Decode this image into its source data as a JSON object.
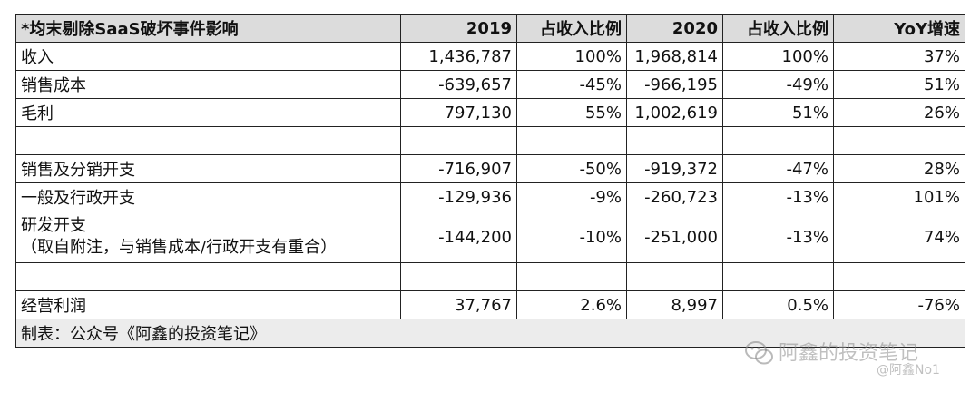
{
  "table": {
    "header": [
      "*均末剔除SaaS破坏事件影响",
      "2019",
      "占收入比例",
      "2020",
      "占收入比例",
      "YoY增速"
    ],
    "rows": [
      [
        "收入",
        "1,436,787",
        "100%",
        "1,968,814",
        "100%",
        "37%"
      ],
      [
        "销售成本",
        "-639,657",
        "-45%",
        "-966,195",
        "-49%",
        "51%"
      ],
      [
        "毛利",
        "797,130",
        "55%",
        "1,002,619",
        "51%",
        "26%"
      ],
      [
        "",
        "",
        "",
        "",
        "",
        ""
      ],
      [
        "销售及分销开支",
        "-716,907",
        "-50%",
        "-919,372",
        "-47%",
        "28%"
      ],
      [
        "一般及行政开支",
        "-129,936",
        "-9%",
        "-260,723",
        "-13%",
        "101%"
      ],
      [
        "研发开支",
        "-144,200",
        "-10%",
        "-251,000",
        "-13%",
        "74%"
      ],
      [
        "",
        "",
        "",
        "",
        "",
        ""
      ],
      [
        "经营利润",
        "37,767",
        "2.6%",
        "8,997",
        "0.5%",
        "-76%"
      ]
    ],
    "rd_note": "（取自附注，与销售成本/行政开支有重合）",
    "footer": "制表：公众号《阿鑫的投资笔记》"
  },
  "watermark": {
    "line1": "阿鑫的投资笔记",
    "line2": "@阿鑫No1",
    "icon": "wechat-icon"
  }
}
